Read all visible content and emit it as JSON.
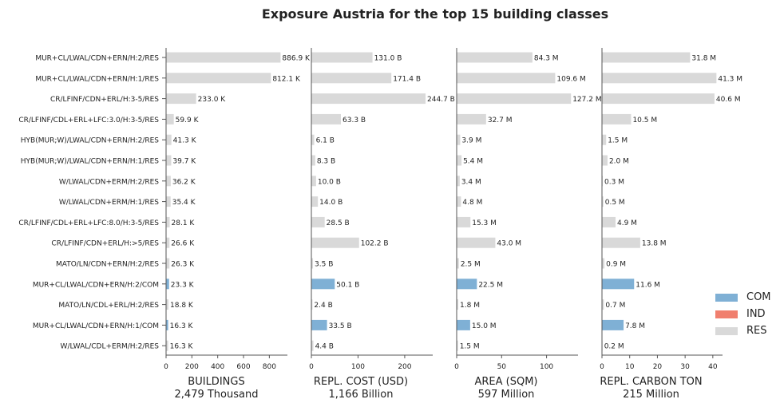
{
  "chart_data": {
    "type": "bar",
    "orientation": "horizontal",
    "title": "Exposure Austria for the top 15 building classes",
    "categories": [
      "MUR+CL/LWAL/CDN+ERN/H:2/RES",
      "MUR+CL/LWAL/CDN+ERN/H:1/RES",
      "CR/LFINF/CDN+ERL/H:3-5/RES",
      "CR/LFINF/CDL+ERL+LFC:3.0/H:3-5/RES",
      "HYB(MUR;W)/LWAL/CDN+ERN/H:2/RES",
      "HYB(MUR;W)/LWAL/CDN+ERN/H:1/RES",
      "W/LWAL/CDN+ERM/H:2/RES",
      "W/LWAL/CDN+ERM/H:1/RES",
      "CR/LFINF/CDL+ERL+LFC:8.0/H:3-5/RES",
      "CR/LFINF/CDN+ERL/H:>5/RES",
      "MATO/LN/CDN+ERN/H:2/RES",
      "MUR+CL/LWAL/CDN+ERN/H:2/COM",
      "MATO/LN/CDL+ERL/H:2/RES",
      "MUR+CL/LWAL/CDN+ERN/H:1/COM",
      "W/LWAL/CDL+ERM/H:2/RES"
    ],
    "occupancy": [
      "RES",
      "RES",
      "RES",
      "RES",
      "RES",
      "RES",
      "RES",
      "RES",
      "RES",
      "RES",
      "RES",
      "COM",
      "RES",
      "COM",
      "RES"
    ],
    "legend": [
      {
        "name": "COM",
        "color": "#7fb0d5"
      },
      {
        "name": "IND",
        "color": "#f07f6e"
      },
      {
        "name": "RES",
        "color": "#d9d9d9"
      }
    ],
    "legend_position": "right",
    "grid": false,
    "panels": [
      {
        "xlabel": "BUILDINGS",
        "subtitle": "2,479 Thousand",
        "xlim": [
          0,
          940
        ],
        "ticks": [
          0,
          200,
          400,
          600,
          800
        ],
        "values": [
          886.9,
          812.1,
          233.0,
          59.9,
          41.3,
          39.7,
          36.2,
          35.4,
          28.1,
          26.6,
          26.3,
          23.3,
          18.8,
          16.3,
          16.3
        ],
        "labels": [
          "886.9 K",
          "812.1 K",
          "233.0 K",
          "59.9 K",
          "41.3 K",
          "39.7 K",
          "36.2 K",
          "35.4 K",
          "28.1 K",
          "26.6 K",
          "26.3 K",
          "23.3 K",
          "18.8 K",
          "16.3 K",
          "16.3 K"
        ]
      },
      {
        "xlabel": "REPL. COST (USD)",
        "subtitle": "1,166 Billion",
        "xlim": [
          0,
          260
        ],
        "ticks": [
          0,
          100,
          200
        ],
        "values": [
          131.0,
          171.4,
          244.7,
          63.3,
          6.1,
          8.3,
          10.0,
          14.0,
          28.5,
          102.2,
          3.5,
          50.1,
          2.4,
          33.5,
          4.4
        ],
        "labels": [
          "131.0 B",
          "171.4 B",
          "244.7 B",
          "63.3 B",
          "6.1 B",
          "8.3 B",
          "10.0 B",
          "14.0 B",
          "28.5 B",
          "102.2 B",
          "3.5 B",
          "50.1 B",
          "2.4 B",
          "33.5 B",
          "4.4 B"
        ]
      },
      {
        "xlabel": "AREA (SQM)",
        "subtitle": "597 Million",
        "xlim": [
          0,
          135
        ],
        "ticks": [
          0,
          50,
          100
        ],
        "values": [
          84.3,
          109.6,
          127.2,
          32.7,
          3.9,
          5.4,
          3.4,
          4.8,
          15.3,
          43.0,
          2.5,
          22.5,
          1.8,
          15.0,
          1.5
        ],
        "labels": [
          "84.3 M",
          "109.6 M",
          "127.2 M",
          "32.7 M",
          "3.9 M",
          "5.4 M",
          "3.4 M",
          "4.8 M",
          "15.3 M",
          "43.0 M",
          "2.5 M",
          "22.5 M",
          "1.8 M",
          "15.0 M",
          "1.5 M"
        ]
      },
      {
        "xlabel": "REPL. CARBON TON",
        "subtitle": "215 Million",
        "xlim": [
          0,
          43.5
        ],
        "ticks": [
          0,
          10,
          20,
          30,
          40
        ],
        "values": [
          31.8,
          41.3,
          40.6,
          10.5,
          1.5,
          2.0,
          0.3,
          0.5,
          4.9,
          13.8,
          0.9,
          11.6,
          0.7,
          7.8,
          0.2
        ],
        "labels": [
          "31.8 M",
          "41.3 M",
          "40.6 M",
          "10.5 M",
          "1.5 M",
          "2.0 M",
          "0.3 M",
          "0.5 M",
          "4.9 M",
          "13.8 M",
          "0.9 M",
          "11.6 M",
          "0.7 M",
          "7.8 M",
          "0.2 M"
        ]
      }
    ]
  }
}
